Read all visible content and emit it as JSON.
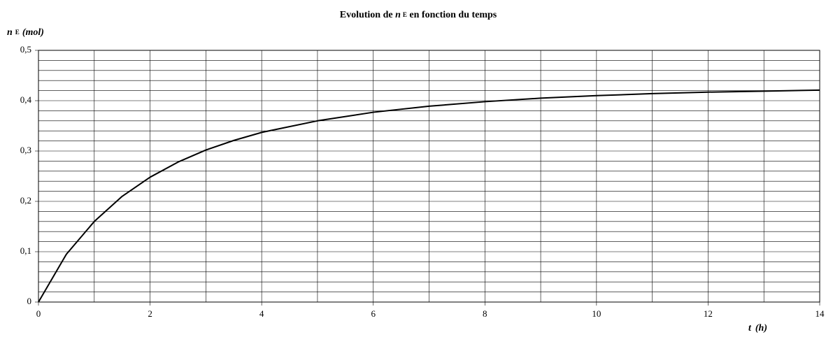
{
  "chart_data": {
    "type": "line",
    "title": {
      "before": "Evolution de ",
      "var": "n",
      "sub": "E",
      "after": " en fonction du temps"
    },
    "y_label": {
      "var": "n",
      "sub": "E",
      "unit": "(mol)"
    },
    "x_label": {
      "var": "t",
      "unit": "(h)"
    },
    "x": [
      0,
      0.5,
      1,
      1.5,
      2,
      2.5,
      3,
      3.5,
      4,
      5,
      6,
      7,
      8,
      9,
      10,
      11,
      12,
      13,
      14
    ],
    "series": [
      {
        "name": "n E",
        "color": "#000000",
        "values": [
          0,
          0.095,
          0.16,
          0.21,
          0.248,
          0.278,
          0.302,
          0.321,
          0.337,
          0.36,
          0.377,
          0.389,
          0.398,
          0.405,
          0.41,
          0.414,
          0.417,
          0.419,
          0.421
        ]
      }
    ],
    "xlim": [
      0,
      14
    ],
    "ylim": [
      0,
      0.5
    ],
    "xticks": [
      0,
      2,
      4,
      6,
      8,
      10,
      12,
      14
    ],
    "xminor": [
      1,
      3,
      5,
      7,
      9,
      11,
      13
    ],
    "yticks": [
      0,
      {
        "value": 0.1,
        "label": "0,1"
      },
      {
        "value": 0.2,
        "label": "0,2"
      },
      {
        "value": 0.3,
        "label": "0,3"
      },
      {
        "value": 0.4,
        "label": "0,4"
      },
      {
        "value": 0.5,
        "label": "0,5"
      }
    ],
    "yminor": [
      0.02,
      0.04,
      0.06,
      0.08,
      0.12,
      0.14,
      0.16,
      0.18,
      0.22,
      0.24,
      0.26,
      0.28,
      0.32,
      0.34,
      0.36,
      0.38,
      0.42,
      0.44,
      0.46,
      0.48
    ],
    "grid": true
  }
}
